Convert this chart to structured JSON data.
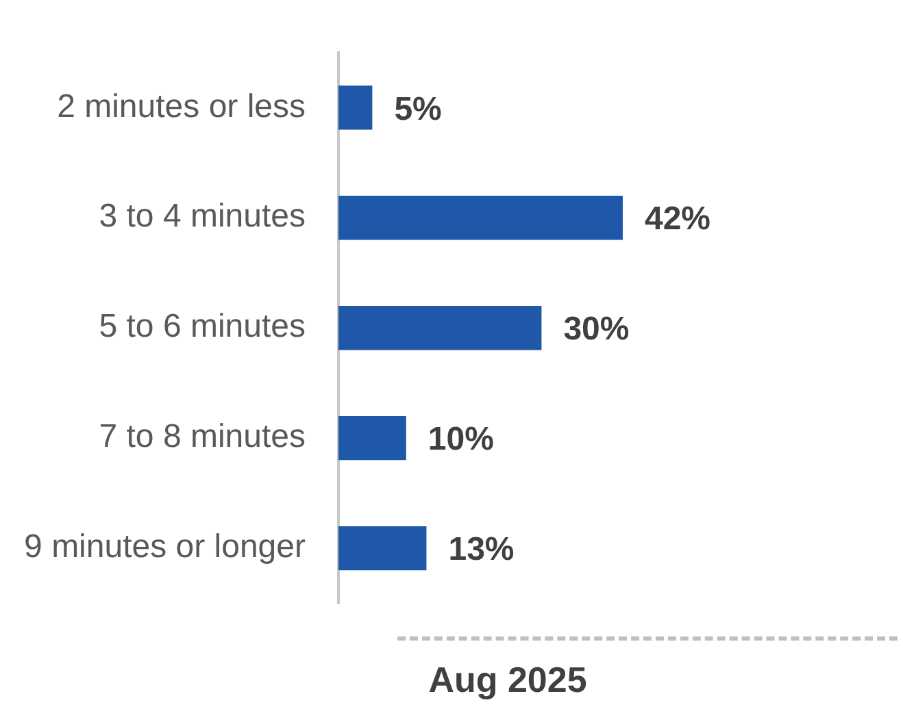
{
  "chart_data": {
    "type": "bar",
    "orientation": "horizontal",
    "categories": [
      "2 minutes or less",
      "3 to 4 minutes",
      "5 to 6 minutes",
      "7 to 8 minutes",
      "9 minutes or longer"
    ],
    "values": [
      5,
      42,
      30,
      10,
      13
    ],
    "color": "#1f58a8",
    "value_labels": [
      "5%",
      "42%",
      "30%",
      "10%",
      "13%"
    ],
    "xlabel": "Aug 2025",
    "tick_labels": "y"
  }
}
